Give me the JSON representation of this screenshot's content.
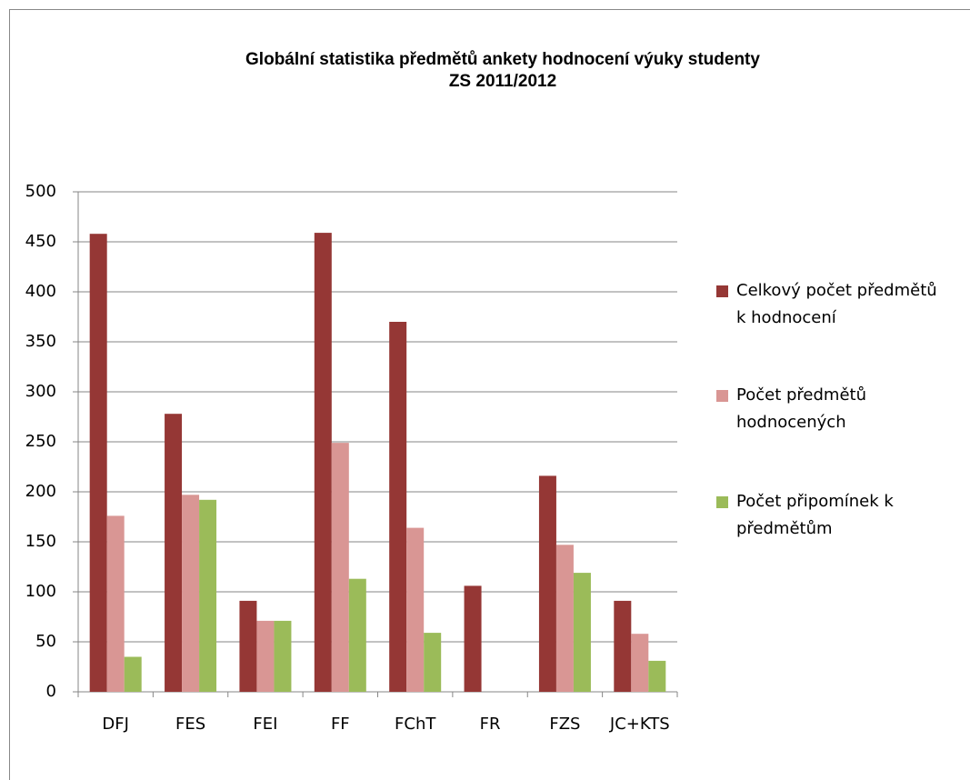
{
  "chart_data": {
    "type": "bar",
    "title": "Globální statistika předmětů ankety hodnocení výuky studenty",
    "subtitle": "ZS 2011/2012",
    "categories": [
      "DFJ",
      "FES",
      "FEI",
      "FF",
      "FChT",
      "FR",
      "FZS",
      "JC+KTS"
    ],
    "series": [
      {
        "name": "Celkový počet předmětů k hodnocení",
        "color": "#953735",
        "values": [
          458,
          278,
          91,
          459,
          370,
          106,
          216,
          91
        ]
      },
      {
        "name": "Počet předmětů hodnocených",
        "color": "#d99694",
        "values": [
          176,
          197,
          71,
          249,
          164,
          0,
          147,
          58
        ]
      },
      {
        "name": "Počet připomínek k předmětům",
        "color": "#9bbb59",
        "values": [
          35,
          192,
          71,
          113,
          59,
          0,
          119,
          31
        ]
      }
    ],
    "ylim": [
      0,
      500
    ],
    "yticks": [
      0,
      50,
      100,
      150,
      200,
      250,
      300,
      350,
      400,
      450,
      500
    ],
    "grid": true,
    "legend": "right"
  }
}
